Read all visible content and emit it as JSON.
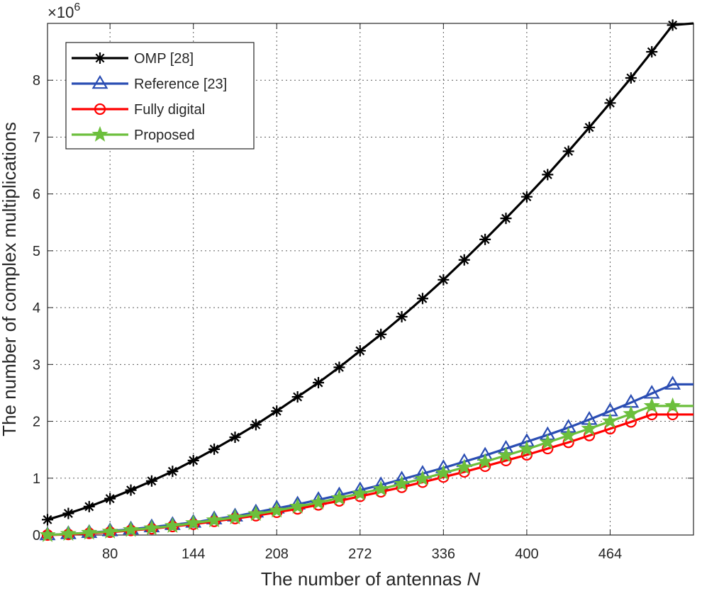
{
  "chart_data": {
    "type": "line",
    "title": "",
    "xlabel": "The number of antennas",
    "xlabel_var": "N",
    "ylabel": "The number of complex multiplications",
    "y_exponent_label": "×10",
    "y_exponent_power": "6",
    "xlim": [
      32,
      528
    ],
    "ylim": [
      0,
      9
    ],
    "x_ticks": [
      80,
      144,
      208,
      272,
      336,
      400,
      464
    ],
    "y_ticks": [
      0,
      1,
      2,
      3,
      4,
      5,
      6,
      7,
      8
    ],
    "grid": true,
    "legend_position": "top-left",
    "x": [
      32,
      48,
      64,
      80,
      96,
      112,
      128,
      144,
      160,
      176,
      192,
      208,
      224,
      240,
      256,
      272,
      288,
      304,
      320,
      336,
      352,
      368,
      384,
      400,
      416,
      432,
      448,
      464,
      480,
      496,
      512,
      528
    ],
    "series": [
      {
        "name": "OMP [28]",
        "color": "#000000",
        "marker": "asterisk",
        "values": [
          0.27,
          0.38,
          0.5,
          0.64,
          0.79,
          0.95,
          1.12,
          1.31,
          1.51,
          1.72,
          1.94,
          2.18,
          2.43,
          2.68,
          2.95,
          3.24,
          3.53,
          3.84,
          4.16,
          4.49,
          4.84,
          5.2,
          5.57,
          5.95,
          6.34,
          6.75,
          7.17,
          7.6,
          8.04,
          8.5,
          8.97,
          9.0
        ]
      },
      {
        "name": "Reference [23]",
        "color": "#2a4db3",
        "marker": "triangle",
        "values": [
          0.0,
          0.02,
          0.04,
          0.07,
          0.1,
          0.14,
          0.18,
          0.22,
          0.28,
          0.33,
          0.4,
          0.47,
          0.54,
          0.62,
          0.7,
          0.79,
          0.88,
          0.98,
          1.08,
          1.18,
          1.29,
          1.4,
          1.52,
          1.64,
          1.76,
          1.89,
          2.03,
          2.18,
          2.33,
          2.49,
          2.65,
          2.65
        ]
      },
      {
        "name": "Fully digital",
        "color": "#ff0000",
        "marker": "circle",
        "values": [
          0.0,
          0.01,
          0.03,
          0.05,
          0.08,
          0.11,
          0.15,
          0.19,
          0.24,
          0.29,
          0.34,
          0.4,
          0.46,
          0.53,
          0.6,
          0.68,
          0.76,
          0.84,
          0.93,
          1.02,
          1.11,
          1.21,
          1.31,
          1.41,
          1.52,
          1.63,
          1.75,
          1.87,
          1.99,
          2.12,
          2.12,
          2.12
        ]
      },
      {
        "name": "Proposed",
        "color": "#6cbf3c",
        "marker": "star",
        "values": [
          0.0,
          0.02,
          0.04,
          0.06,
          0.09,
          0.12,
          0.16,
          0.21,
          0.26,
          0.31,
          0.37,
          0.43,
          0.5,
          0.57,
          0.65,
          0.73,
          0.81,
          0.9,
          0.99,
          1.09,
          1.19,
          1.29,
          1.4,
          1.51,
          1.63,
          1.75,
          1.87,
          2.0,
          2.13,
          2.27,
          2.27,
          2.27
        ]
      }
    ]
  }
}
